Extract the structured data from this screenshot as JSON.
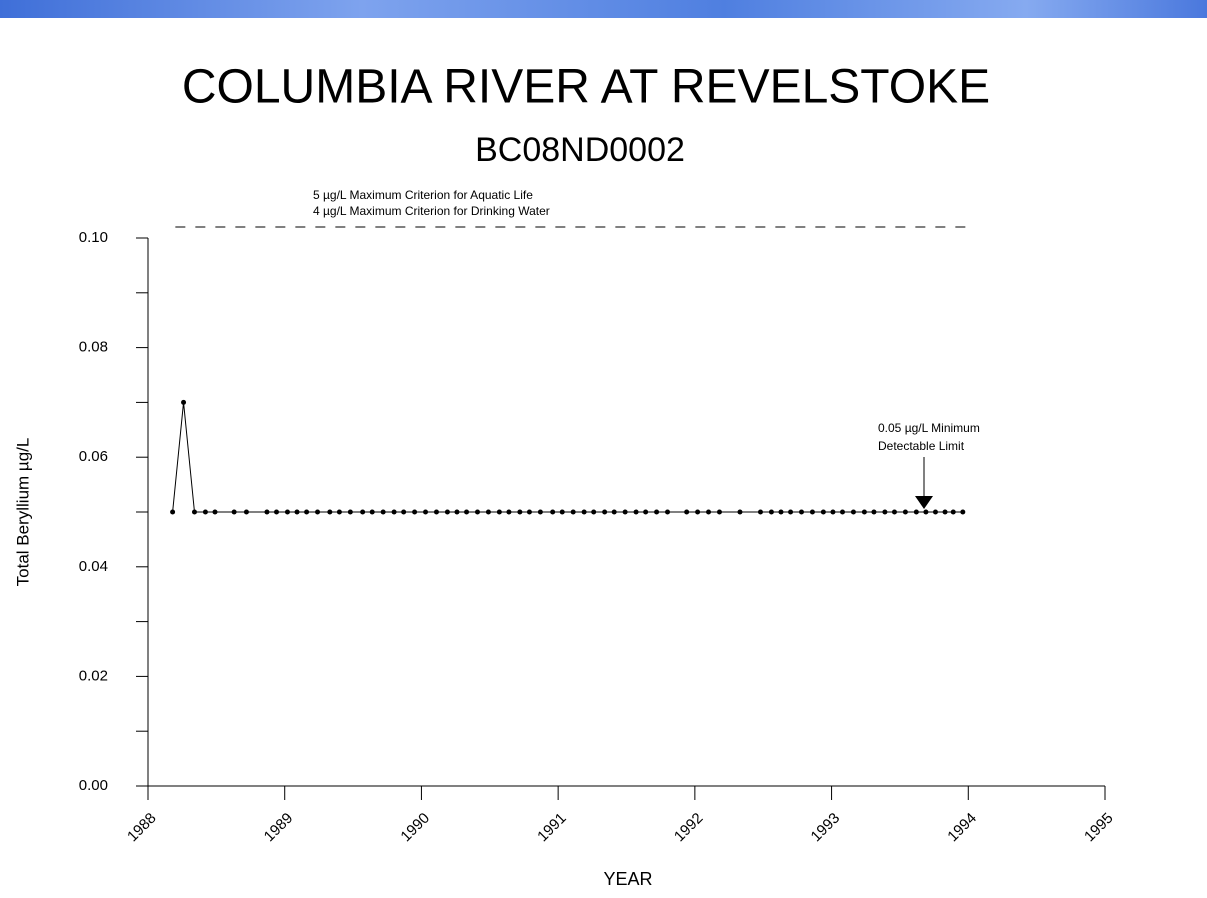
{
  "chart_data": {
    "type": "line",
    "title": "COLUMBIA RIVER AT REVELSTOKE",
    "subtitle": "BC08ND0002",
    "x_label": "YEAR",
    "y_label": "Total Beryllium  µg/L",
    "criteria_labels": [
      "5 µg/L  Maximum Criterion for Aquatic Life",
      "4 µg/L  Maximum Criterion for Drinking Water"
    ],
    "criteria_line": {
      "value": 0.102,
      "x": [
        1988.2,
        1994.01
      ]
    },
    "annotation": [
      "0.05 µg/L  Minimum",
      "Detectable Limit"
    ],
    "xlim": [
      1988,
      1995
    ],
    "xticks": [
      1988,
      1989,
      1990,
      1991,
      1992,
      1993,
      1994,
      1995
    ],
    "ylim": [
      0,
      0.1
    ],
    "yticks": [
      {
        "value": 0,
        "label": "0.00"
      },
      {
        "value": 0.02,
        "label": "0.02"
      },
      {
        "value": 0.04,
        "label": "0.04"
      },
      {
        "value": 0.06,
        "label": "0.06"
      },
      {
        "value": 0.08,
        "label": "0.08"
      },
      {
        "value": 0.1,
        "label": "0.10"
      }
    ],
    "yminorticks": [
      0.01,
      0.03,
      0.05,
      0.07,
      0.09
    ],
    "color": "#000000",
    "x": [
      1988.18,
      1988.26,
      1988.34,
      1988.42,
      1988.49,
      1988.63,
      1988.72,
      1988.87,
      1988.94,
      1989.02,
      1989.09,
      1989.16,
      1989.24,
      1989.33,
      1989.4,
      1989.48,
      1989.57,
      1989.64,
      1989.72,
      1989.8,
      1989.87,
      1989.95,
      1990.03,
      1990.11,
      1990.19,
      1990.26,
      1990.33,
      1990.41,
      1990.49,
      1990.57,
      1990.64,
      1990.72,
      1990.79,
      1990.87,
      1990.96,
      1991.03,
      1991.11,
      1991.19,
      1991.26,
      1991.34,
      1991.41,
      1991.49,
      1991.57,
      1991.64,
      1991.72,
      1991.8,
      1991.94,
      1992.02,
      1992.1,
      1992.18,
      1992.33,
      1992.48,
      1992.56,
      1992.63,
      1992.7,
      1992.78,
      1992.86,
      1992.94,
      1993.01,
      1993.08,
      1993.16,
      1993.24,
      1993.31,
      1993.39,
      1993.46,
      1993.54,
      1993.62,
      1993.69,
      1993.76,
      1993.83,
      1993.89,
      1993.96
    ],
    "values": [
      0.05,
      0.07,
      0.05,
      0.05,
      0.05,
      0.05,
      0.05,
      0.05,
      0.05,
      0.05,
      0.05,
      0.05,
      0.05,
      0.05,
      0.05,
      0.05,
      0.05,
      0.05,
      0.05,
      0.05,
      0.05,
      0.05,
      0.05,
      0.05,
      0.05,
      0.05,
      0.05,
      0.05,
      0.05,
      0.05,
      0.05,
      0.05,
      0.05,
      0.05,
      0.05,
      0.05,
      0.05,
      0.05,
      0.05,
      0.05,
      0.05,
      0.05,
      0.05,
      0.05,
      0.05,
      0.05,
      0.05,
      0.05,
      0.05,
      0.05,
      0.05,
      0.05,
      0.05,
      0.05,
      0.05,
      0.05,
      0.05,
      0.05,
      0.05,
      0.05,
      0.05,
      0.05,
      0.05,
      0.05,
      0.05,
      0.05,
      0.05,
      0.05,
      0.05,
      0.05,
      0.05,
      0.05
    ]
  }
}
